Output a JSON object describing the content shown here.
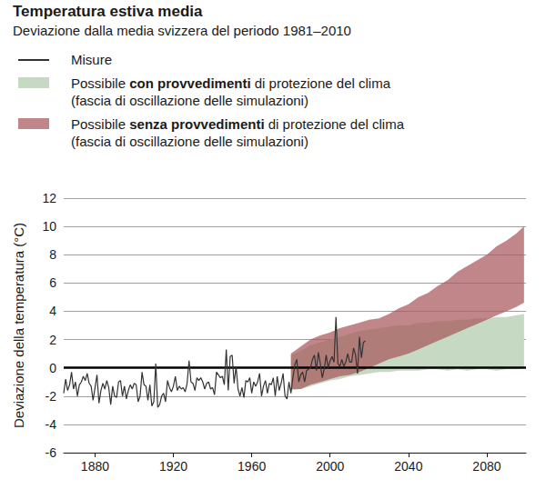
{
  "chart_data": {
    "type": "line",
    "title": "Temperatura estiva media",
    "subtitle": "Deviazione dalla media svizzera del periodo 1981–2010",
    "y_label": "Deviazione della temperatura (°C)",
    "xlim": [
      1864,
      2100
    ],
    "xticks": [
      1880,
      1920,
      1960,
      2000,
      2040,
      2080
    ],
    "ylim": [
      -6,
      12
    ],
    "yticks": [
      -6,
      -4,
      -2,
      0,
      2,
      4,
      6,
      8,
      10,
      12
    ],
    "grid": true,
    "series": [
      {
        "name": "Misure",
        "type": "line",
        "color": "#333333",
        "x": [
          1864,
          1865,
          1866,
          1867,
          1868,
          1869,
          1870,
          1871,
          1872,
          1873,
          1874,
          1875,
          1876,
          1877,
          1878,
          1879,
          1880,
          1881,
          1882,
          1883,
          1884,
          1885,
          1886,
          1887,
          1888,
          1889,
          1890,
          1891,
          1892,
          1893,
          1894,
          1895,
          1896,
          1897,
          1898,
          1899,
          1900,
          1901,
          1902,
          1903,
          1904,
          1905,
          1906,
          1907,
          1908,
          1909,
          1910,
          1911,
          1912,
          1913,
          1914,
          1915,
          1916,
          1917,
          1918,
          1919,
          1920,
          1921,
          1922,
          1923,
          1924,
          1925,
          1926,
          1927,
          1928,
          1929,
          1930,
          1931,
          1932,
          1933,
          1934,
          1935,
          1936,
          1937,
          1938,
          1939,
          1940,
          1941,
          1942,
          1943,
          1944,
          1945,
          1946,
          1947,
          1948,
          1949,
          1950,
          1951,
          1952,
          1953,
          1954,
          1955,
          1956,
          1957,
          1958,
          1959,
          1960,
          1961,
          1962,
          1963,
          1964,
          1965,
          1966,
          1967,
          1968,
          1969,
          1970,
          1971,
          1972,
          1973,
          1974,
          1975,
          1976,
          1977,
          1978,
          1979,
          1980,
          1981,
          1982,
          1983,
          1984,
          1985,
          1986,
          1987,
          1988,
          1989,
          1990,
          1991,
          1992,
          1993,
          1994,
          1995,
          1996,
          1997,
          1998,
          1999,
          2000,
          2001,
          2002,
          2003,
          2004,
          2005,
          2006,
          2007,
          2008,
          2009,
          2010,
          2011,
          2012,
          2013,
          2014,
          2015,
          2016,
          2017,
          2018
        ],
        "values": [
          -1.8,
          -0.8,
          -1.6,
          -1.2,
          -0.3,
          -1.5,
          -1.0,
          -2.0,
          -1.2,
          -1.0,
          -0.6,
          -0.9,
          -0.4,
          -1.1,
          -1.3,
          -2.3,
          -1.4,
          -0.5,
          -2.5,
          -1.6,
          -1.1,
          -1.5,
          -0.9,
          -1.4,
          -2.6,
          -1.3,
          -2.0,
          -2.1,
          -1.0,
          -0.9,
          -2.0,
          -1.3,
          -2.2,
          -1.6,
          -1.2,
          -1.5,
          -1.1,
          -1.2,
          -2.4,
          -2.0,
          -0.3,
          -1.2,
          -1.3,
          -2.3,
          -1.2,
          -2.7,
          -2.4,
          0.3,
          -2.8,
          -2.6,
          -2.0,
          -1.8,
          -2.4,
          -0.9,
          -1.4,
          -1.7,
          -1.3,
          -0.6,
          -1.6,
          -1.3,
          -1.5,
          -1.4,
          -1.7,
          -1.1,
          0.5,
          -1.0,
          -1.1,
          -1.6,
          -0.7,
          -0.9,
          -0.7,
          -1.0,
          -1.5,
          -1.1,
          -1.0,
          -1.5,
          -1.4,
          -1.9,
          -0.3,
          -0.5,
          -0.7,
          -0.6,
          -1.2,
          1.3,
          -1.6,
          0.8,
          0.9,
          -1.1,
          0.1,
          -1.5,
          -2.0,
          -1.4,
          -2.1,
          -0.9,
          -1.0,
          -0.7,
          -1.8,
          -1.0,
          -1.3,
          -1.0,
          -0.4,
          -2.0,
          -1.3,
          -0.9,
          -1.8,
          -1.1,
          -1.2,
          -0.7,
          -2.0,
          -0.6,
          -1.6,
          -1.1,
          -0.4,
          -2.0,
          -2.2,
          -1.0,
          -1.8,
          -0.7,
          0.2,
          0.6,
          -1.0,
          -0.5,
          -0.3,
          -1.0,
          -0.2,
          -0.1,
          0.0,
          0.6,
          0.9,
          -0.2,
          1.1,
          0.3,
          -0.7,
          -0.1,
          0.9,
          0.0,
          0.5,
          0.8,
          0.4,
          3.6,
          0.3,
          0.1,
          0.6,
          0.1,
          0.4,
          1.0,
          0.4,
          0.4,
          1.4,
          0.9,
          -0.4,
          2.2,
          0.7,
          1.8,
          1.9
        ]
      },
      {
        "name": "Possibile con provvedimenti di protezione del clima",
        "name_bold": "con provvedimenti",
        "note": "(fascia di oscillazione delle simulazioni)",
        "type": "band",
        "color": "#c6d9c3",
        "x": [
          1980,
          1985,
          1990,
          1995,
          2000,
          2005,
          2010,
          2015,
          2020,
          2025,
          2030,
          2035,
          2040,
          2045,
          2050,
          2055,
          2060,
          2065,
          2070,
          2075,
          2080,
          2085,
          2090,
          2095,
          2099
        ],
        "low": [
          -1.6,
          -1.5,
          -1.3,
          -1.1,
          -0.9,
          -0.8,
          -0.6,
          -0.5,
          -0.4,
          -0.3,
          -0.3,
          -0.2,
          -0.2,
          -0.2,
          -0.1,
          -0.1,
          -0.2,
          -0.1,
          -0.2,
          -0.1,
          -0.1,
          -0.2,
          -0.1,
          -0.1,
          0.0
        ],
        "high": [
          0.9,
          1.2,
          1.6,
          1.8,
          2.0,
          2.2,
          2.4,
          2.6,
          2.7,
          2.8,
          2.9,
          3.0,
          3.0,
          3.2,
          3.2,
          3.3,
          3.3,
          3.4,
          3.4,
          3.5,
          3.5,
          3.6,
          3.6,
          3.7,
          3.8
        ]
      },
      {
        "name": "Possibile senza provvedimenti di protezione del clima",
        "name_bold": "senza provvedimenti",
        "note": "(fascia di oscillazione delle simulazioni)",
        "type": "band",
        "color": "#a8585c",
        "x": [
          1980,
          1985,
          1990,
          1995,
          2000,
          2005,
          2010,
          2015,
          2020,
          2025,
          2030,
          2035,
          2040,
          2045,
          2050,
          2055,
          2060,
          2065,
          2070,
          2075,
          2080,
          2085,
          2090,
          2095,
          2099
        ],
        "low": [
          -1.5,
          -1.5,
          -1.2,
          -1.0,
          -0.8,
          -0.6,
          -0.5,
          -0.3,
          0.0,
          0.3,
          0.6,
          0.8,
          1.0,
          1.3,
          1.6,
          1.9,
          2.2,
          2.5,
          2.8,
          3.1,
          3.4,
          3.7,
          4.0,
          4.3,
          4.6
        ],
        "high": [
          1.0,
          1.5,
          2.0,
          2.3,
          2.5,
          2.8,
          3.0,
          3.2,
          3.4,
          3.5,
          3.8,
          4.2,
          4.5,
          5.0,
          5.3,
          5.8,
          6.2,
          6.8,
          7.2,
          7.6,
          8.0,
          8.6,
          9.0,
          9.5,
          10.0
        ]
      }
    ]
  }
}
